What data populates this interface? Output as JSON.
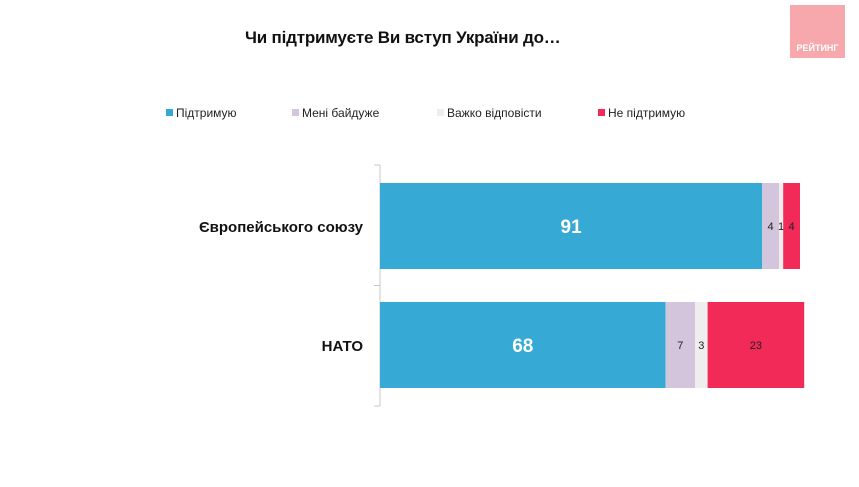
{
  "title": "Чи підтримуєте Ви вступ України до…",
  "logo_text": "РЕЙТИНГ",
  "colors": {
    "support": "#36aad5",
    "indifferent": "#d3c5dc",
    "hard_to_say": "#eeeeee",
    "not_support": "#f22a58",
    "logo": "#f7a8ac"
  },
  "chart_data": {
    "type": "bar",
    "orientation": "horizontal",
    "stacked": true,
    "categories": [
      "Європейського союзу",
      "НАТО"
    ],
    "series": [
      {
        "name": "Підтримую",
        "values": [
          91,
          68
        ],
        "color": "#36aad5"
      },
      {
        "name": "Мені байдуже",
        "values": [
          4,
          7
        ],
        "color": "#d3c5dc"
      },
      {
        "name": "Важко відповісти",
        "values": [
          1,
          3
        ],
        "color": "#eeeeee"
      },
      {
        "name": "Не підтримую",
        "values": [
          4,
          23
        ],
        "color": "#f22a58"
      }
    ],
    "xlim": [
      0,
      100
    ],
    "legend_position": "top",
    "grid": false
  }
}
